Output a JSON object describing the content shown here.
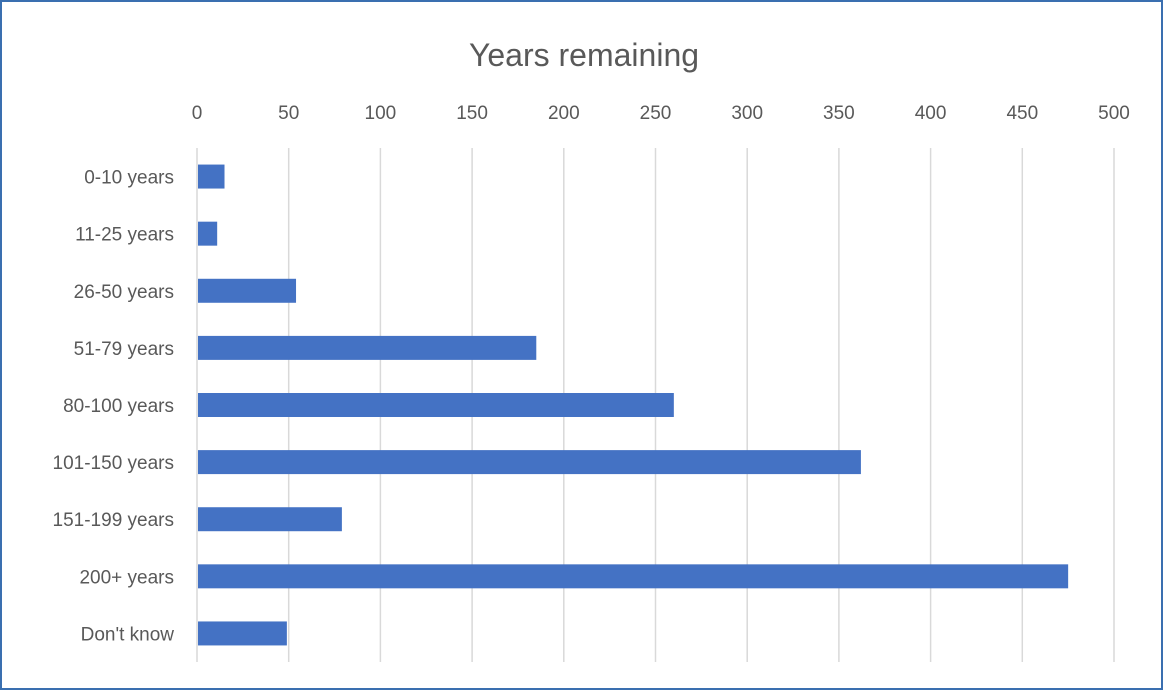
{
  "chart_data": {
    "type": "bar",
    "orientation": "horizontal",
    "title": "Years remaining",
    "xlabel": "",
    "ylabel": "",
    "categories": [
      "0-10 years",
      "11-25 years",
      "26-50 years",
      "51-79 years",
      "80-100 years",
      "101-150 years",
      "151-199 years",
      "200+ years",
      "Don't know"
    ],
    "values": [
      15,
      11,
      54,
      185,
      260,
      362,
      79,
      475,
      49
    ],
    "xlim": [
      0,
      500
    ],
    "x_ticks": [
      "0",
      "50",
      "100",
      "150",
      "200",
      "250",
      "300",
      "350",
      "400",
      "450",
      "500"
    ],
    "x_axis_position": "top",
    "grid": true,
    "legend": "none",
    "bar_color": "#4472c4"
  }
}
